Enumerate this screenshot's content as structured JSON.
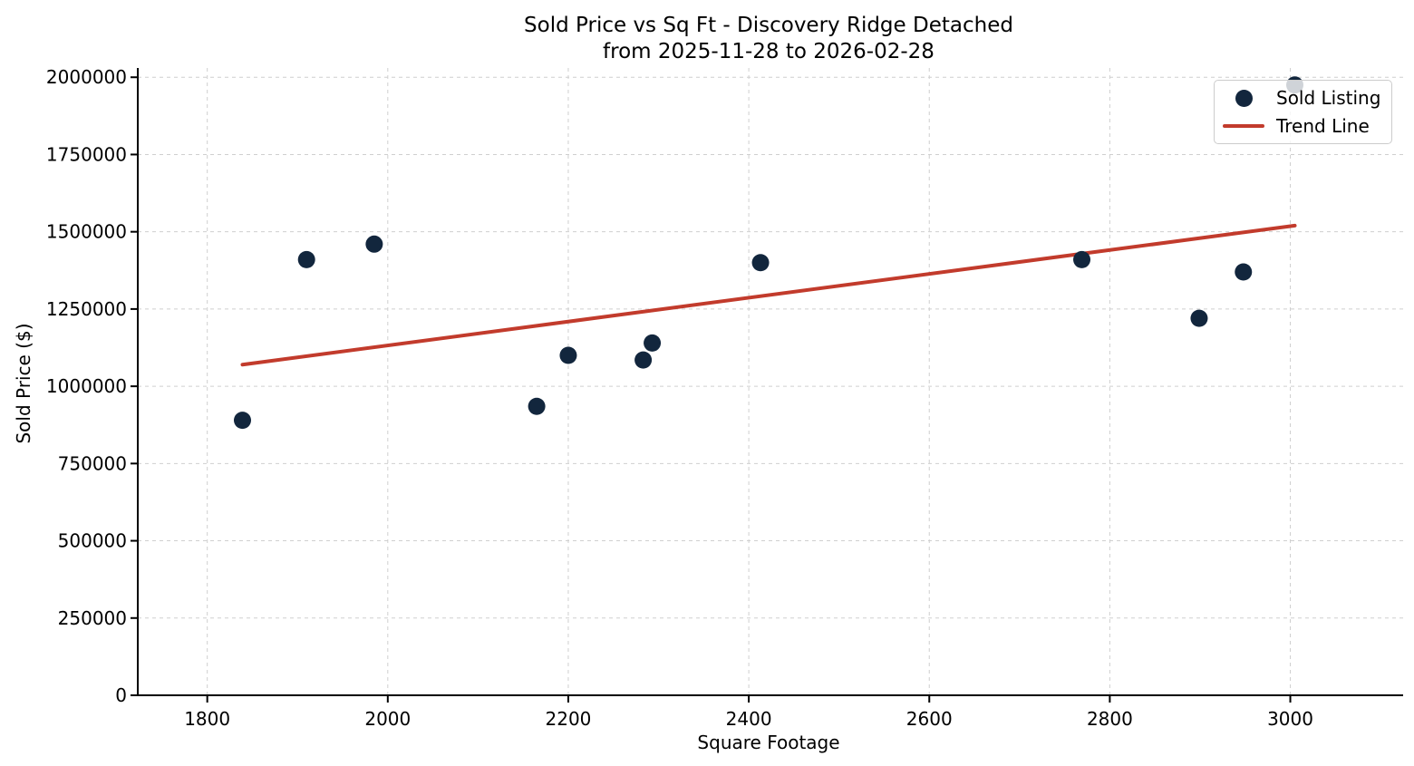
{
  "chart_data": {
    "type": "scatter",
    "title": "Sold Price vs Sq Ft - Discovery Ridge Detached",
    "subtitle": "from 2025-11-28 to 2026-02-28",
    "xlabel": "Square Footage",
    "ylabel": "Sold Price ($)",
    "xlim": [
      1723,
      3125
    ],
    "ylim": [
      0,
      2030000
    ],
    "x_ticks": [
      1800,
      2000,
      2200,
      2400,
      2600,
      2800,
      3000
    ],
    "y_ticks": [
      0,
      250000,
      500000,
      750000,
      1000000,
      1250000,
      1500000,
      1750000,
      2000000
    ],
    "grid": true,
    "colors": {
      "scatter": "#12263d",
      "trend": "#c23b2c",
      "grid": "#cfcfcf",
      "axes": "#000000"
    },
    "legend": {
      "position": "upper right",
      "entries": [
        {
          "label": "Sold Listing",
          "marker": "point",
          "color": "#12263d"
        },
        {
          "label": "Trend Line",
          "marker": "line",
          "color": "#c23b2c"
        }
      ]
    },
    "series": [
      {
        "name": "Sold Listing",
        "type": "scatter",
        "color": "#12263d",
        "points": [
          [
            1839,
            890000
          ],
          [
            1910,
            1410000
          ],
          [
            1985,
            1460000
          ],
          [
            2165,
            935000
          ],
          [
            2200,
            1100000
          ],
          [
            2283,
            1085000
          ],
          [
            2293,
            1140000
          ],
          [
            2413,
            1400000
          ],
          [
            2769,
            1410000
          ],
          [
            2899,
            1220000
          ],
          [
            2948,
            1370000
          ],
          [
            3005,
            1975000
          ]
        ]
      },
      {
        "name": "Trend Line",
        "type": "line",
        "color": "#c23b2c",
        "points": [
          [
            1839,
            1070000
          ],
          [
            3005,
            1520000
          ]
        ]
      }
    ]
  }
}
